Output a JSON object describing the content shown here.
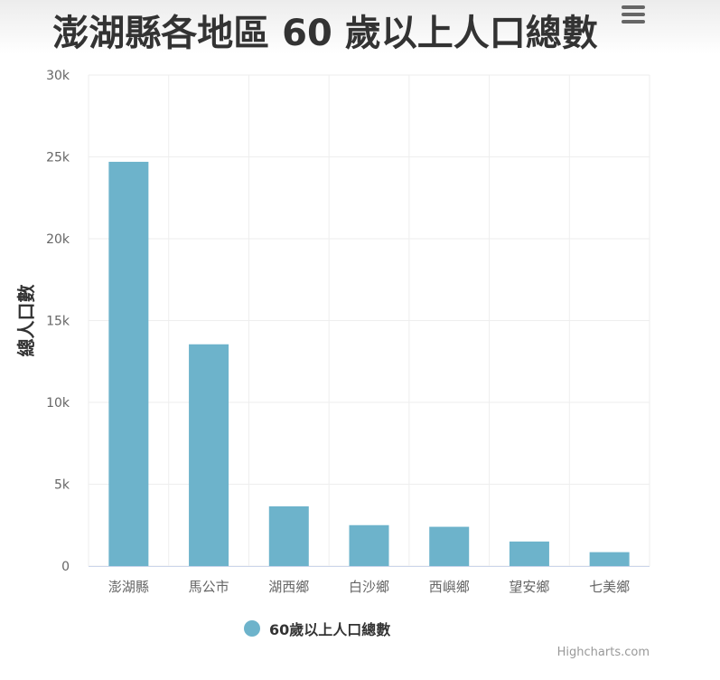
{
  "title": "澎湖縣各地區 60 歲以上人口總數",
  "credits": "Highcharts.com",
  "colors": {
    "series": "#6db3cb",
    "grid": "#eeeeee",
    "text": "#666666"
  },
  "chart_data": {
    "type": "bar",
    "title": "澎湖縣各地區 60 歲以上人口總數",
    "xlabel": "",
    "ylabel": "總人口數",
    "ylim": [
      0,
      30000
    ],
    "yticks": [
      "0",
      "5k",
      "10k",
      "15k",
      "20k",
      "25k",
      "30k"
    ],
    "ytick_values": [
      0,
      5000,
      10000,
      15000,
      20000,
      25000,
      30000
    ],
    "categories": [
      "澎湖縣",
      "馬公市",
      "湖西鄉",
      "白沙鄉",
      "西嶼鄉",
      "望安鄉",
      "七美鄉"
    ],
    "series": [
      {
        "name": "60歲以上人口總數",
        "values": [
          24700,
          13550,
          3650,
          2500,
          2400,
          1500,
          850
        ]
      }
    ],
    "grid": true,
    "legend": "bottom-center"
  }
}
